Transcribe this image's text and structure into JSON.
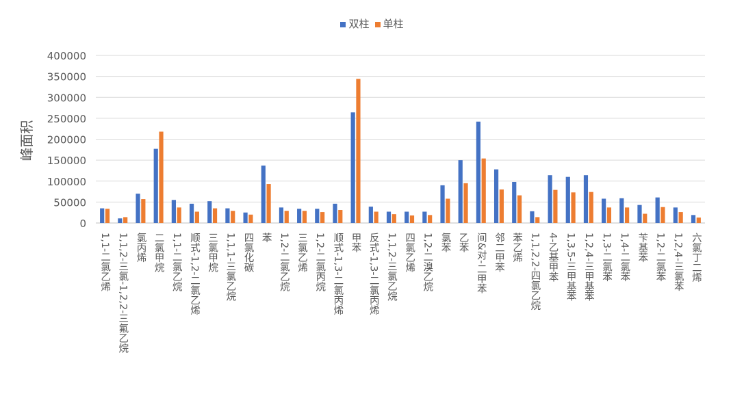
{
  "chart_data": {
    "type": "bar",
    "title": "",
    "xlabel": "",
    "ylabel": "峰面积",
    "ylim": [
      0,
      400000
    ],
    "yticks": [
      0,
      50000,
      100000,
      150000,
      200000,
      250000,
      300000,
      350000,
      400000
    ],
    "ytick_labels": [
      "0",
      "50000",
      "100000",
      "150000",
      "200000",
      "250000",
      "300000",
      "350000",
      "400000"
    ],
    "grid": true,
    "legend_position": "top",
    "categories": [
      "1,1-二氯乙烯",
      "1,1,2-三氯-1,2,2-三氟乙烷",
      "氯丙烯",
      "二氯甲烷",
      "1,1-二氯乙烷",
      "顺式-1,2-二氯乙烯",
      "三氯甲烷",
      "1,1,1-三氯乙烷",
      "四氯化碳",
      "苯",
      "1,2-二氯乙烷",
      "三氯乙烯",
      "1,2-二氯丙烷",
      "顺式-1,3-二氯丙烯",
      "甲苯",
      "反式-1,3-二氯丙烯",
      "1,1,2-三氯乙烷",
      "四氯乙烯",
      "1,2-二溴乙烷",
      "氯苯",
      "乙苯",
      "间&对-二甲苯",
      "邻二甲苯",
      "苯乙烯",
      "1,1,2,2-四氯乙烷",
      "4-乙基甲苯",
      "1,3,5-三甲基苯",
      "1,2,4-三甲基苯",
      "1,3-二氯苯",
      "1,4-二氯苯",
      "苄基苯",
      "1,2-二氯苯",
      "1,2,4-三氯苯",
      "六氯丁二烯"
    ],
    "series": [
      {
        "name": "双柱",
        "color": "#4472C4",
        "values": [
          35000,
          11000,
          70000,
          177000,
          55000,
          46000,
          52000,
          35000,
          25000,
          137000,
          37000,
          34000,
          34000,
          46000,
          264000,
          39000,
          27000,
          27000,
          27000,
          90000,
          150000,
          242000,
          128000,
          98000,
          28000,
          114000,
          110000,
          114000,
          58000,
          59000,
          43000,
          61000,
          37000,
          19000
        ]
      },
      {
        "name": "单柱",
        "color": "#ED7D31",
        "values": [
          34000,
          14000,
          57000,
          218000,
          37000,
          27000,
          35000,
          29000,
          20000,
          93000,
          29000,
          29000,
          26000,
          31000,
          344000,
          27000,
          21000,
          18000,
          19000,
          58000,
          95000,
          154000,
          80000,
          66000,
          14000,
          79000,
          73000,
          74000,
          37000,
          37000,
          22000,
          38000,
          26000,
          13000
        ]
      }
    ]
  }
}
